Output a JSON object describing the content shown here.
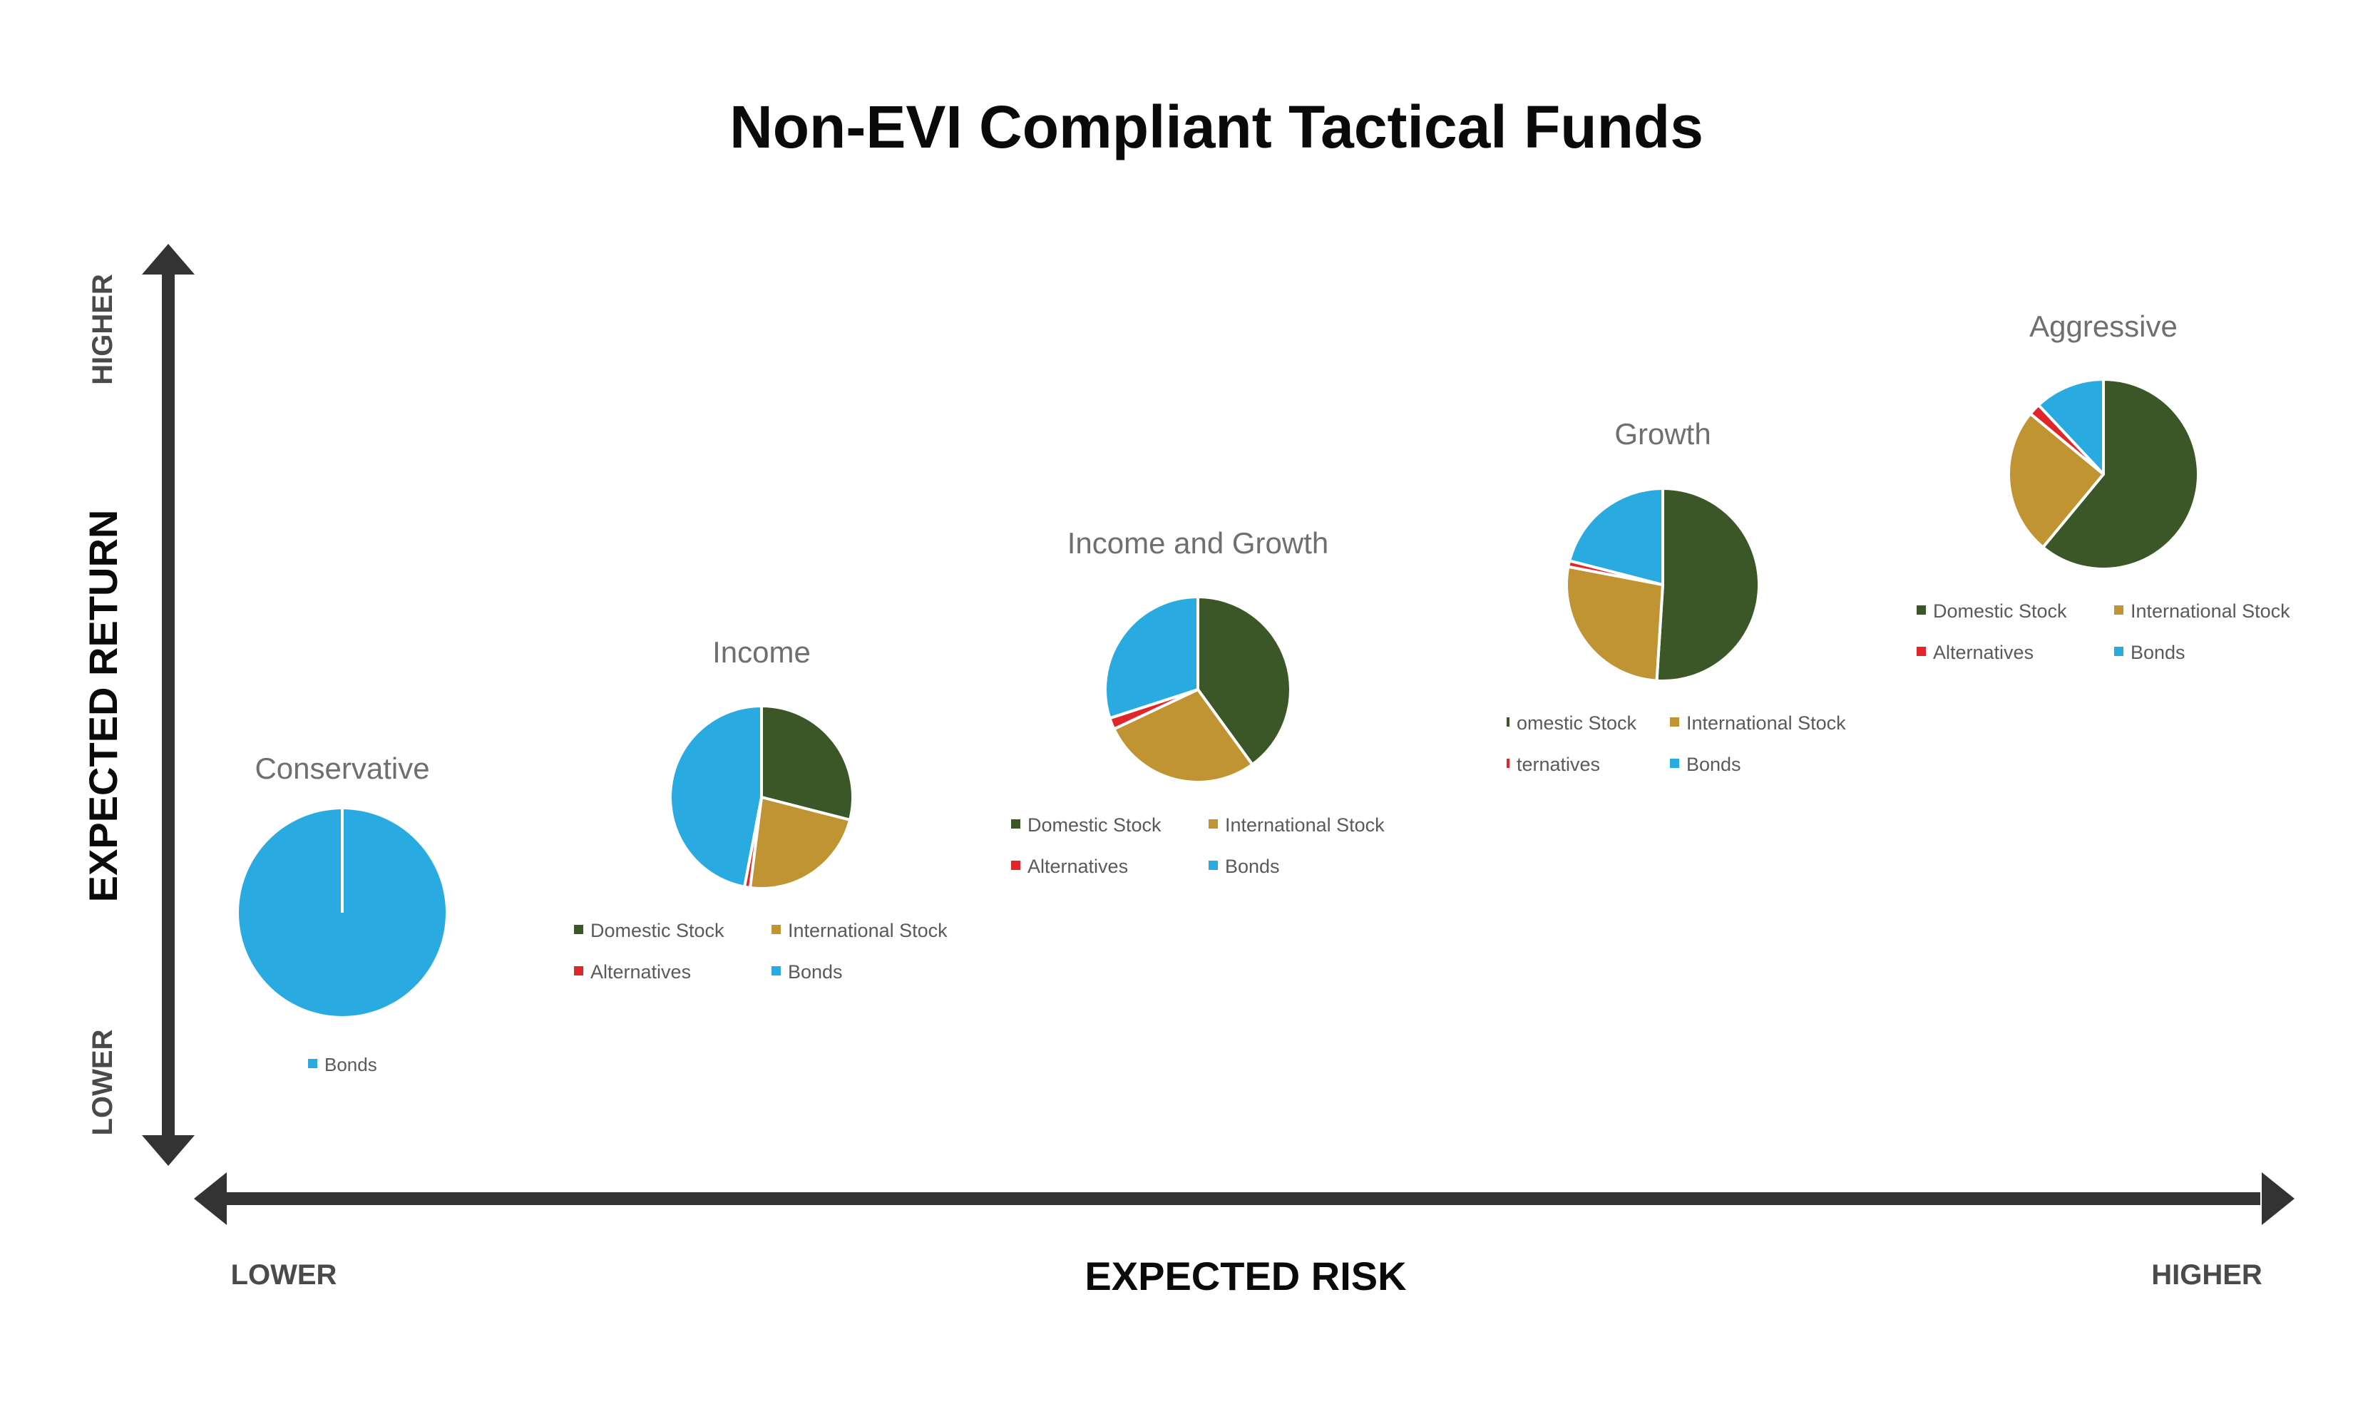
{
  "chart_data": {
    "type": "pie",
    "title": "Non-EVI Compliant Tactical Funds",
    "xlabel": "EXPECTED RISK",
    "ylabel": "EXPECTED RETURN",
    "x_low": "LOWER",
    "x_high": "HIGHER",
    "y_low": "LOWER",
    "y_high": "HIGHER",
    "colors": {
      "Domestic Stock": "#3b5727",
      "International Stock": "#c09333",
      "Alternatives": "#e0262b",
      "Bonds": "#29abe2"
    },
    "charts": [
      {
        "title": "Conservative",
        "legend": [
          "Bonds"
        ],
        "slices": [
          {
            "label": "Bonds",
            "value": 100
          }
        ]
      },
      {
        "title": "Income",
        "legend": [
          "Domestic Stock",
          "International Stock",
          "Alternatives",
          "Bonds"
        ],
        "slices": [
          {
            "label": "Domestic Stock",
            "value": 29
          },
          {
            "label": "International Stock",
            "value": 23
          },
          {
            "label": "Alternatives",
            "value": 1
          },
          {
            "label": "Bonds",
            "value": 47
          }
        ]
      },
      {
        "title": "Income and Growth",
        "legend": [
          "Domestic Stock",
          "International Stock",
          "Alternatives",
          "Bonds"
        ],
        "slices": [
          {
            "label": "Domestic Stock",
            "value": 40
          },
          {
            "label": "International Stock",
            "value": 28
          },
          {
            "label": "Alternatives",
            "value": 2
          },
          {
            "label": "Bonds",
            "value": 30
          }
        ]
      },
      {
        "title": "Growth",
        "legend": [
          "omestic Stock",
          "International Stock",
          "ternatives",
          "Bonds"
        ],
        "slices": [
          {
            "label": "Domestic Stock",
            "value": 51
          },
          {
            "label": "International Stock",
            "value": 27
          },
          {
            "label": "Alternatives",
            "value": 1
          },
          {
            "label": "Bonds",
            "value": 21
          }
        ]
      },
      {
        "title": "Aggressive",
        "legend": [
          "Domestic Stock",
          "International Stock",
          "Alternatives",
          "Bonds"
        ],
        "slices": [
          {
            "label": "Domestic Stock",
            "value": 61
          },
          {
            "label": "International Stock",
            "value": 25
          },
          {
            "label": "Alternatives",
            "value": 2
          },
          {
            "label": "Bonds",
            "value": 12
          }
        ]
      }
    ]
  }
}
